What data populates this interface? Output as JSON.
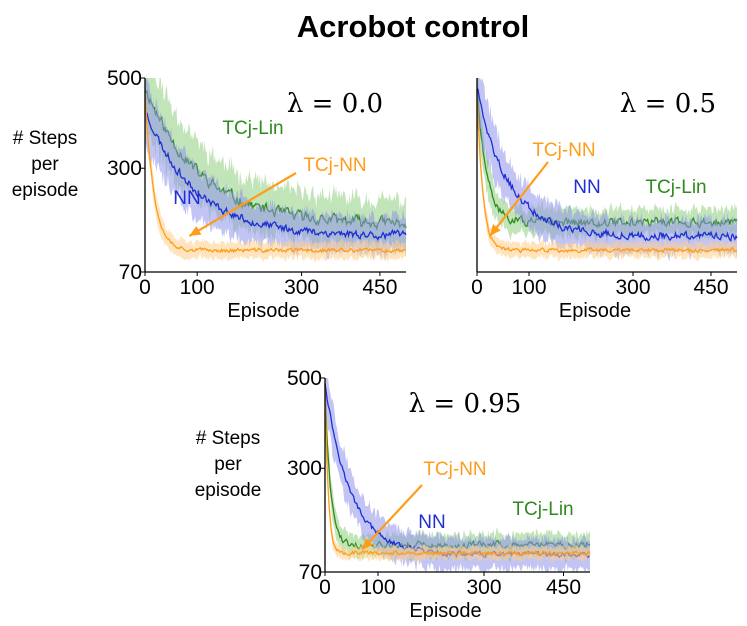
{
  "figure": {
    "title": "Acrobot control"
  },
  "chart_data": [
    {
      "type": "line",
      "lambda_label": "λ = 0.0",
      "xlabel": "Episode",
      "ylabel": [
        "# Steps",
        "per",
        "episode"
      ],
      "xlim": [
        0,
        500
      ],
      "ylim": [
        70,
        500
      ],
      "xticks": [
        0,
        100,
        300,
        450
      ],
      "yticks": [
        70,
        300,
        500
      ],
      "series": [
        {
          "name": "TCj-Lin",
          "color": "#2e8b1e",
          "band_color": "#8fce7f",
          "start": 480,
          "tau": 105,
          "end": 175,
          "band": 50,
          "noise": 20,
          "seed": 11
        },
        {
          "name": "NN",
          "color": "#1f2fd6",
          "band_color": "#8f93ea",
          "start": 430,
          "tau": 95,
          "end": 150,
          "band": 40,
          "noise": 14,
          "seed": 23
        },
        {
          "name": "TCj-NN",
          "color": "#ff9c1a",
          "band_color": "#ffcf8a",
          "start": 470,
          "tau": 17,
          "end": 118,
          "band": 18,
          "noise": 7,
          "seed": 37
        }
      ],
      "annotations": [
        {
          "text": "TCj-Lin",
          "series": "TCj-Lin"
        },
        {
          "text": "TCj-NN",
          "series": "TCj-NN",
          "arrow_to": [
            85,
            150
          ]
        },
        {
          "text": "NN",
          "series": "NN"
        }
      ]
    },
    {
      "type": "line",
      "lambda_label": "λ = 0.5",
      "xlabel": "Episode",
      "ylabel": null,
      "xlim": [
        0,
        500
      ],
      "ylim": [
        70,
        500
      ],
      "xticks": [
        0,
        100,
        300,
        450
      ],
      "yticks": [],
      "series": [
        {
          "name": "TCj-Lin",
          "color": "#2e8b1e",
          "band_color": "#8fce7f",
          "start": 480,
          "tau": 18,
          "end": 180,
          "band": 30,
          "noise": 15,
          "seed": 51
        },
        {
          "name": "NN",
          "color": "#1f2fd6",
          "band_color": "#8f93ea",
          "start": 480,
          "tau": 60,
          "end": 150,
          "band": 38,
          "noise": 14,
          "seed": 63
        },
        {
          "name": "TCj-NN",
          "color": "#ff9c1a",
          "band_color": "#ffcf8a",
          "start": 470,
          "tau": 11,
          "end": 118,
          "band": 16,
          "noise": 7,
          "seed": 77
        }
      ],
      "annotations": [
        {
          "text": "TCj-NN",
          "series": "TCj-NN",
          "arrow_to": [
            25,
            150
          ]
        },
        {
          "text": "NN",
          "series": "NN"
        },
        {
          "text": "TCj-Lin",
          "series": "TCj-Lin"
        }
      ]
    },
    {
      "type": "line",
      "lambda_label": "λ = 0.95",
      "xlabel": "Episode",
      "ylabel": [
        "# Steps",
        "per",
        "episode"
      ],
      "xlim": [
        0,
        500
      ],
      "ylim": [
        70,
        500
      ],
      "xticks": [
        0,
        100,
        300,
        450
      ],
      "yticks": [
        70,
        300,
        500
      ],
      "series": [
        {
          "name": "TCj-Lin",
          "color": "#2e8b1e",
          "band_color": "#8fce7f",
          "start": 490,
          "tau": 10,
          "end": 130,
          "band": 24,
          "noise": 12,
          "seed": 91
        },
        {
          "name": "NN",
          "color": "#1f2fd6",
          "band_color": "#8f93ea",
          "start": 490,
          "tau": 48,
          "end": 108,
          "band": 34,
          "noise": 9,
          "seed": 97
        },
        {
          "name": "TCj-NN",
          "color": "#ff9c1a",
          "band_color": "#ffcf8a",
          "start": 480,
          "tau": 6,
          "end": 112,
          "band": 14,
          "noise": 7,
          "seed": 101
        }
      ],
      "annotations": [
        {
          "text": "TCj-NN",
          "series": "TCj-NN",
          "arrow_to": [
            70,
            120
          ]
        },
        {
          "text": "NN",
          "series": "NN"
        },
        {
          "text": "TCj-Lin",
          "series": "TCj-Lin"
        }
      ]
    }
  ]
}
